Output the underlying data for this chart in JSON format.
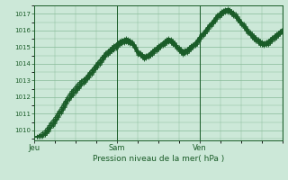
{
  "xlabel": "Pression niveau de la mer( hPa )",
  "bg_color": "#cce8d8",
  "grid_color": "#88bb99",
  "line_color": "#1a5c28",
  "ylim": [
    1009.4,
    1017.5
  ],
  "xlim_max": 120,
  "day_labels": [
    "Jeu",
    "Sam",
    "Ven"
  ],
  "day_positions": [
    0,
    40,
    80
  ],
  "yticks": [
    1010,
    1011,
    1012,
    1013,
    1014,
    1015,
    1016,
    1017
  ],
  "series": [
    [
      1009.6,
      1009.65,
      1009.7,
      1009.8,
      1009.9,
      1010.0,
      1010.15,
      1010.3,
      1010.5,
      1010.65,
      1010.8,
      1011.0,
      1011.2,
      1011.4,
      1011.6,
      1011.8,
      1012.0,
      1012.2,
      1012.35,
      1012.5,
      1012.65,
      1012.8,
      1012.9,
      1013.0,
      1013.1,
      1013.2,
      1013.35,
      1013.5,
      1013.65,
      1013.8,
      1013.95,
      1014.1,
      1014.25,
      1014.4,
      1014.55,
      1014.7,
      1014.8,
      1014.9,
      1015.0,
      1015.1,
      1015.2,
      1015.3,
      1015.4,
      1015.45,
      1015.5,
      1015.55,
      1015.5,
      1015.45,
      1015.35,
      1015.2,
      1015.0,
      1014.8,
      1014.7,
      1014.6,
      1014.5,
      1014.55,
      1014.6,
      1014.7,
      1014.8,
      1014.9,
      1015.0,
      1015.1,
      1015.2,
      1015.3,
      1015.4,
      1015.5,
      1015.55,
      1015.5,
      1015.4,
      1015.3,
      1015.15,
      1015.0,
      1014.9,
      1014.8,
      1014.85,
      1014.9,
      1015.0,
      1015.1,
      1015.2,
      1015.3,
      1015.45,
      1015.6,
      1015.75,
      1015.9,
      1016.05,
      1016.2,
      1016.35,
      1016.5,
      1016.65,
      1016.8,
      1016.95,
      1017.05,
      1017.15,
      1017.25,
      1017.3,
      1017.32,
      1017.3,
      1017.2,
      1017.1,
      1017.0,
      1016.85,
      1016.7,
      1016.55,
      1016.4,
      1016.25,
      1016.1,
      1015.95,
      1015.8,
      1015.7,
      1015.6,
      1015.5,
      1015.4,
      1015.35,
      1015.3,
      1015.35,
      1015.4,
      1015.5,
      1015.6,
      1015.7,
      1015.8,
      1015.9,
      1016.0,
      1016.1
    ],
    [
      1009.6,
      1009.62,
      1009.65,
      1009.72,
      1009.8,
      1009.9,
      1010.05,
      1010.2,
      1010.4,
      1010.55,
      1010.7,
      1010.9,
      1011.1,
      1011.3,
      1011.5,
      1011.7,
      1011.9,
      1012.1,
      1012.25,
      1012.4,
      1012.55,
      1012.7,
      1012.82,
      1012.95,
      1013.05,
      1013.15,
      1013.3,
      1013.45,
      1013.6,
      1013.75,
      1013.9,
      1014.05,
      1014.2,
      1014.35,
      1014.5,
      1014.65,
      1014.75,
      1014.85,
      1014.95,
      1015.05,
      1015.15,
      1015.25,
      1015.35,
      1015.4,
      1015.45,
      1015.5,
      1015.45,
      1015.4,
      1015.3,
      1015.15,
      1014.95,
      1014.75,
      1014.65,
      1014.55,
      1014.45,
      1014.5,
      1014.55,
      1014.65,
      1014.75,
      1014.85,
      1014.95,
      1015.05,
      1015.15,
      1015.25,
      1015.35,
      1015.45,
      1015.5,
      1015.45,
      1015.35,
      1015.25,
      1015.1,
      1014.95,
      1014.85,
      1014.75,
      1014.8,
      1014.85,
      1014.95,
      1015.05,
      1015.15,
      1015.25,
      1015.4,
      1015.55,
      1015.7,
      1015.85,
      1016.0,
      1016.15,
      1016.3,
      1016.45,
      1016.6,
      1016.75,
      1016.9,
      1017.0,
      1017.1,
      1017.2,
      1017.25,
      1017.27,
      1017.25,
      1017.15,
      1017.05,
      1016.95,
      1016.8,
      1016.65,
      1016.5,
      1016.35,
      1016.2,
      1016.05,
      1015.9,
      1015.75,
      1015.65,
      1015.55,
      1015.45,
      1015.35,
      1015.3,
      1015.25,
      1015.3,
      1015.35,
      1015.45,
      1015.55,
      1015.65,
      1015.75,
      1015.85,
      1015.95,
      1016.05
    ],
    [
      1009.6,
      1009.6,
      1009.62,
      1009.68,
      1009.75,
      1009.85,
      1009.98,
      1010.12,
      1010.3,
      1010.45,
      1010.6,
      1010.8,
      1011.0,
      1011.2,
      1011.4,
      1011.6,
      1011.8,
      1012.0,
      1012.15,
      1012.3,
      1012.45,
      1012.6,
      1012.72,
      1012.85,
      1012.97,
      1013.08,
      1013.22,
      1013.37,
      1013.52,
      1013.67,
      1013.82,
      1013.97,
      1014.12,
      1014.27,
      1014.42,
      1014.57,
      1014.68,
      1014.78,
      1014.88,
      1014.98,
      1015.08,
      1015.18,
      1015.28,
      1015.35,
      1015.4,
      1015.45,
      1015.4,
      1015.35,
      1015.25,
      1015.1,
      1014.9,
      1014.7,
      1014.6,
      1014.5,
      1014.4,
      1014.45,
      1014.5,
      1014.6,
      1014.7,
      1014.8,
      1014.9,
      1015.0,
      1015.1,
      1015.2,
      1015.3,
      1015.4,
      1015.45,
      1015.4,
      1015.3,
      1015.2,
      1015.05,
      1014.9,
      1014.8,
      1014.7,
      1014.75,
      1014.8,
      1014.9,
      1015.0,
      1015.1,
      1015.2,
      1015.35,
      1015.5,
      1015.65,
      1015.8,
      1015.95,
      1016.1,
      1016.25,
      1016.4,
      1016.55,
      1016.7,
      1016.85,
      1016.95,
      1017.05,
      1017.15,
      1017.2,
      1017.22,
      1017.2,
      1017.1,
      1017.0,
      1016.9,
      1016.75,
      1016.6,
      1016.45,
      1016.3,
      1016.15,
      1016.0,
      1015.85,
      1015.7,
      1015.6,
      1015.5,
      1015.4,
      1015.3,
      1015.25,
      1015.2,
      1015.25,
      1015.3,
      1015.4,
      1015.5,
      1015.6,
      1015.7,
      1015.8,
      1015.9,
      1016.0
    ],
    [
      1009.6,
      1009.6,
      1009.6,
      1009.65,
      1009.7,
      1009.8,
      1009.92,
      1010.05,
      1010.22,
      1010.38,
      1010.52,
      1010.72,
      1010.92,
      1011.12,
      1011.32,
      1011.52,
      1011.72,
      1011.92,
      1012.07,
      1012.22,
      1012.37,
      1012.52,
      1012.65,
      1012.78,
      1012.9,
      1013.02,
      1013.15,
      1013.3,
      1013.45,
      1013.6,
      1013.75,
      1013.9,
      1014.05,
      1014.2,
      1014.35,
      1014.5,
      1014.62,
      1014.72,
      1014.82,
      1014.92,
      1015.02,
      1015.12,
      1015.22,
      1015.3,
      1015.35,
      1015.4,
      1015.35,
      1015.3,
      1015.2,
      1015.05,
      1014.85,
      1014.65,
      1014.55,
      1014.45,
      1014.35,
      1014.4,
      1014.45,
      1014.55,
      1014.65,
      1014.75,
      1014.85,
      1014.95,
      1015.05,
      1015.15,
      1015.25,
      1015.35,
      1015.4,
      1015.35,
      1015.25,
      1015.15,
      1015.0,
      1014.85,
      1014.75,
      1014.65,
      1014.7,
      1014.75,
      1014.85,
      1014.95,
      1015.05,
      1015.15,
      1015.3,
      1015.45,
      1015.6,
      1015.75,
      1015.9,
      1016.05,
      1016.2,
      1016.35,
      1016.5,
      1016.65,
      1016.8,
      1016.9,
      1017.0,
      1017.1,
      1017.15,
      1017.18,
      1017.15,
      1017.05,
      1016.95,
      1016.85,
      1016.7,
      1016.55,
      1016.4,
      1016.25,
      1016.1,
      1015.95,
      1015.8,
      1015.65,
      1015.55,
      1015.45,
      1015.35,
      1015.25,
      1015.2,
      1015.15,
      1015.2,
      1015.25,
      1015.35,
      1015.45,
      1015.55,
      1015.65,
      1015.75,
      1015.85,
      1015.95
    ],
    [
      1009.6,
      1009.6,
      1009.6,
      1009.6,
      1009.65,
      1009.75,
      1009.87,
      1010.0,
      1010.17,
      1010.33,
      1010.48,
      1010.67,
      1010.87,
      1011.07,
      1011.27,
      1011.47,
      1011.67,
      1011.87,
      1012.02,
      1012.17,
      1012.32,
      1012.47,
      1012.6,
      1012.73,
      1012.85,
      1012.97,
      1013.1,
      1013.25,
      1013.4,
      1013.55,
      1013.7,
      1013.85,
      1014.0,
      1014.15,
      1014.3,
      1014.45,
      1014.57,
      1014.67,
      1014.77,
      1014.87,
      1014.97,
      1015.07,
      1015.17,
      1015.25,
      1015.3,
      1015.35,
      1015.3,
      1015.25,
      1015.15,
      1015.0,
      1014.8,
      1014.6,
      1014.5,
      1014.4,
      1014.3,
      1014.35,
      1014.4,
      1014.5,
      1014.6,
      1014.7,
      1014.8,
      1014.9,
      1015.0,
      1015.1,
      1015.2,
      1015.3,
      1015.35,
      1015.3,
      1015.2,
      1015.1,
      1014.95,
      1014.8,
      1014.7,
      1014.6,
      1014.65,
      1014.7,
      1014.8,
      1014.9,
      1015.0,
      1015.1,
      1015.25,
      1015.4,
      1015.55,
      1015.7,
      1015.85,
      1016.0,
      1016.15,
      1016.3,
      1016.45,
      1016.6,
      1016.75,
      1016.85,
      1016.95,
      1017.05,
      1017.1,
      1017.13,
      1017.1,
      1017.0,
      1016.9,
      1016.8,
      1016.65,
      1016.5,
      1016.35,
      1016.2,
      1016.05,
      1015.9,
      1015.75,
      1015.6,
      1015.5,
      1015.4,
      1015.3,
      1015.2,
      1015.15,
      1015.1,
      1015.15,
      1015.2,
      1015.3,
      1015.4,
      1015.5,
      1015.6,
      1015.7,
      1015.8,
      1015.9
    ],
    [
      1009.6,
      1009.6,
      1009.6,
      1009.6,
      1009.62,
      1009.72,
      1009.83,
      1009.96,
      1010.13,
      1010.28,
      1010.43,
      1010.62,
      1010.82,
      1011.02,
      1011.22,
      1011.42,
      1011.62,
      1011.82,
      1011.97,
      1012.12,
      1012.27,
      1012.42,
      1012.55,
      1012.68,
      1012.8,
      1012.92,
      1013.05,
      1013.2,
      1013.35,
      1013.5,
      1013.65,
      1013.8,
      1013.95,
      1014.1,
      1014.25,
      1014.4,
      1014.52,
      1014.62,
      1014.72,
      1014.82,
      1014.92,
      1015.02,
      1015.12,
      1015.2,
      1015.25,
      1015.3,
      1015.25,
      1015.2,
      1015.1,
      1014.95,
      1014.75,
      1014.55,
      1014.45,
      1014.35,
      1014.25,
      1014.3,
      1014.35,
      1014.45,
      1014.55,
      1014.65,
      1014.75,
      1014.85,
      1014.95,
      1015.05,
      1015.15,
      1015.25,
      1015.3,
      1015.25,
      1015.15,
      1015.05,
      1014.9,
      1014.75,
      1014.65,
      1014.55,
      1014.6,
      1014.65,
      1014.75,
      1014.85,
      1014.95,
      1015.05,
      1015.2,
      1015.35,
      1015.5,
      1015.65,
      1015.8,
      1015.95,
      1016.1,
      1016.25,
      1016.4,
      1016.55,
      1016.7,
      1016.8,
      1016.9,
      1017.0,
      1017.05,
      1017.08,
      1017.05,
      1016.95,
      1016.85,
      1016.75,
      1016.6,
      1016.45,
      1016.3,
      1016.15,
      1016.0,
      1015.85,
      1015.7,
      1015.55,
      1015.45,
      1015.35,
      1015.25,
      1015.15,
      1015.1,
      1015.05,
      1015.1,
      1015.15,
      1015.25,
      1015.35,
      1015.45,
      1015.55,
      1015.65,
      1015.75,
      1015.85
    ]
  ]
}
